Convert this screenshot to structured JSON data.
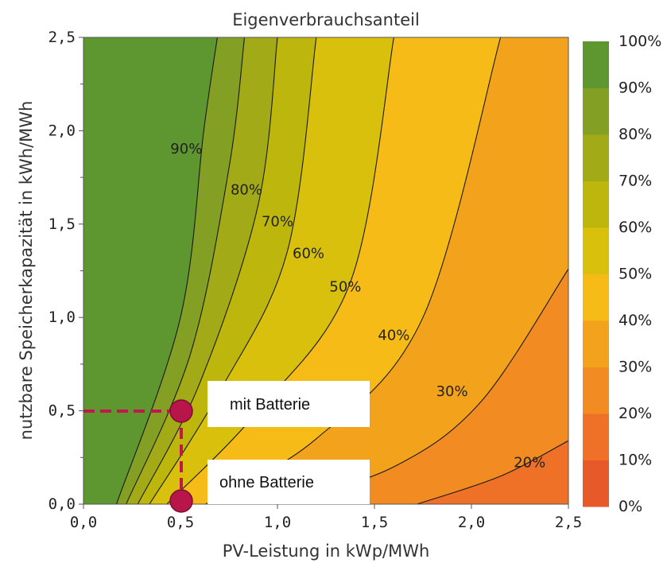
{
  "chart_data": {
    "type": "heatmap",
    "subtype": "filled-contour",
    "title": "Eigenverbrauchsanteil",
    "xlabel": "PV-Leistung in kWp/MWh",
    "ylabel": "nutzbare Speicherkapazität in kWh/MWh",
    "xlim": [
      0,
      2.5
    ],
    "ylim": [
      0,
      2.5
    ],
    "x_ticks": [
      0.0,
      0.5,
      1.0,
      1.5,
      2.0,
      2.5
    ],
    "y_ticks": [
      0.0,
      0.5,
      1.0,
      1.5,
      2.0,
      2.5
    ],
    "x_tick_labels": [
      "0,0",
      "0,5",
      "1,0",
      "1,5",
      "2,0",
      "2,5"
    ],
    "y_tick_labels": [
      "0,0",
      "0,5",
      "1,0",
      "1,5",
      "2,0",
      "2,5"
    ],
    "colorbar": {
      "levels": [
        0,
        10,
        20,
        30,
        40,
        50,
        60,
        70,
        80,
        90,
        100
      ],
      "labels": [
        "0%",
        "10%",
        "20%",
        "30%",
        "40%",
        "50%",
        "60%",
        "70%",
        "80%",
        "90%",
        "100%"
      ],
      "colors": [
        "#e8592a",
        "#ee7127",
        "#f18b22",
        "#f3a21c",
        "#f6bb17",
        "#d8c00d",
        "#bdb70d",
        "#a2aa17",
        "#83a025",
        "#5e9630"
      ]
    },
    "contours": [
      {
        "label": "90%",
        "level": 90,
        "points": [
          [
            0.17,
            0.0
          ],
          [
            0.5,
            1.0
          ],
          [
            0.62,
            2.0
          ],
          [
            0.69,
            2.5
          ]
        ],
        "label_at": [
          0.53,
          1.9
        ]
      },
      {
        "label": "80%",
        "level": 80,
        "points": [
          [
            0.22,
            0.0
          ],
          [
            0.55,
            0.8
          ],
          [
            0.75,
            1.8
          ],
          [
            0.83,
            2.5
          ]
        ],
        "label_at": [
          0.84,
          1.68
        ]
      },
      {
        "label": "70%",
        "level": 70,
        "points": [
          [
            0.28,
            0.0
          ],
          [
            0.6,
            0.65
          ],
          [
            0.9,
            1.6
          ],
          [
            1.0,
            2.5
          ]
        ],
        "label_at": [
          1.0,
          1.51
        ]
      },
      {
        "label": "60%",
        "level": 60,
        "points": [
          [
            0.34,
            0.0
          ],
          [
            0.7,
            0.6
          ],
          [
            1.05,
            1.35
          ],
          [
            1.2,
            2.5
          ]
        ],
        "label_at": [
          1.16,
          1.34
        ]
      },
      {
        "label": "50%",
        "level": 50,
        "points": [
          [
            0.43,
            0.0
          ],
          [
            0.9,
            0.5
          ],
          [
            1.38,
            1.2
          ],
          [
            1.6,
            2.5
          ]
        ],
        "label_at": [
          1.35,
          1.16
        ]
      },
      {
        "label": "40%",
        "level": 40,
        "points": [
          [
            0.63,
            0.0
          ],
          [
            1.2,
            0.35
          ],
          [
            1.75,
            1.0
          ],
          [
            2.15,
            2.5
          ]
        ],
        "label_at": [
          1.6,
          0.9
        ]
      },
      {
        "label": "30%",
        "level": 30,
        "points": [
          [
            1.02,
            0.0
          ],
          [
            1.6,
            0.2
          ],
          [
            2.05,
            0.55
          ],
          [
            2.5,
            1.26
          ]
        ],
        "label_at": [
          1.9,
          0.6
        ]
      },
      {
        "label": "20%",
        "level": 20,
        "points": [
          [
            1.72,
            0.0
          ],
          [
            2.15,
            0.15
          ],
          [
            2.5,
            0.34
          ]
        ],
        "label_at": [
          2.3,
          0.22
        ]
      }
    ],
    "annotations": [
      {
        "label": "mit Batterie",
        "x": 0.5,
        "y": 0.5
      },
      {
        "label": "ohne Batterie",
        "x": 0.5,
        "y": 0.0
      }
    ]
  }
}
